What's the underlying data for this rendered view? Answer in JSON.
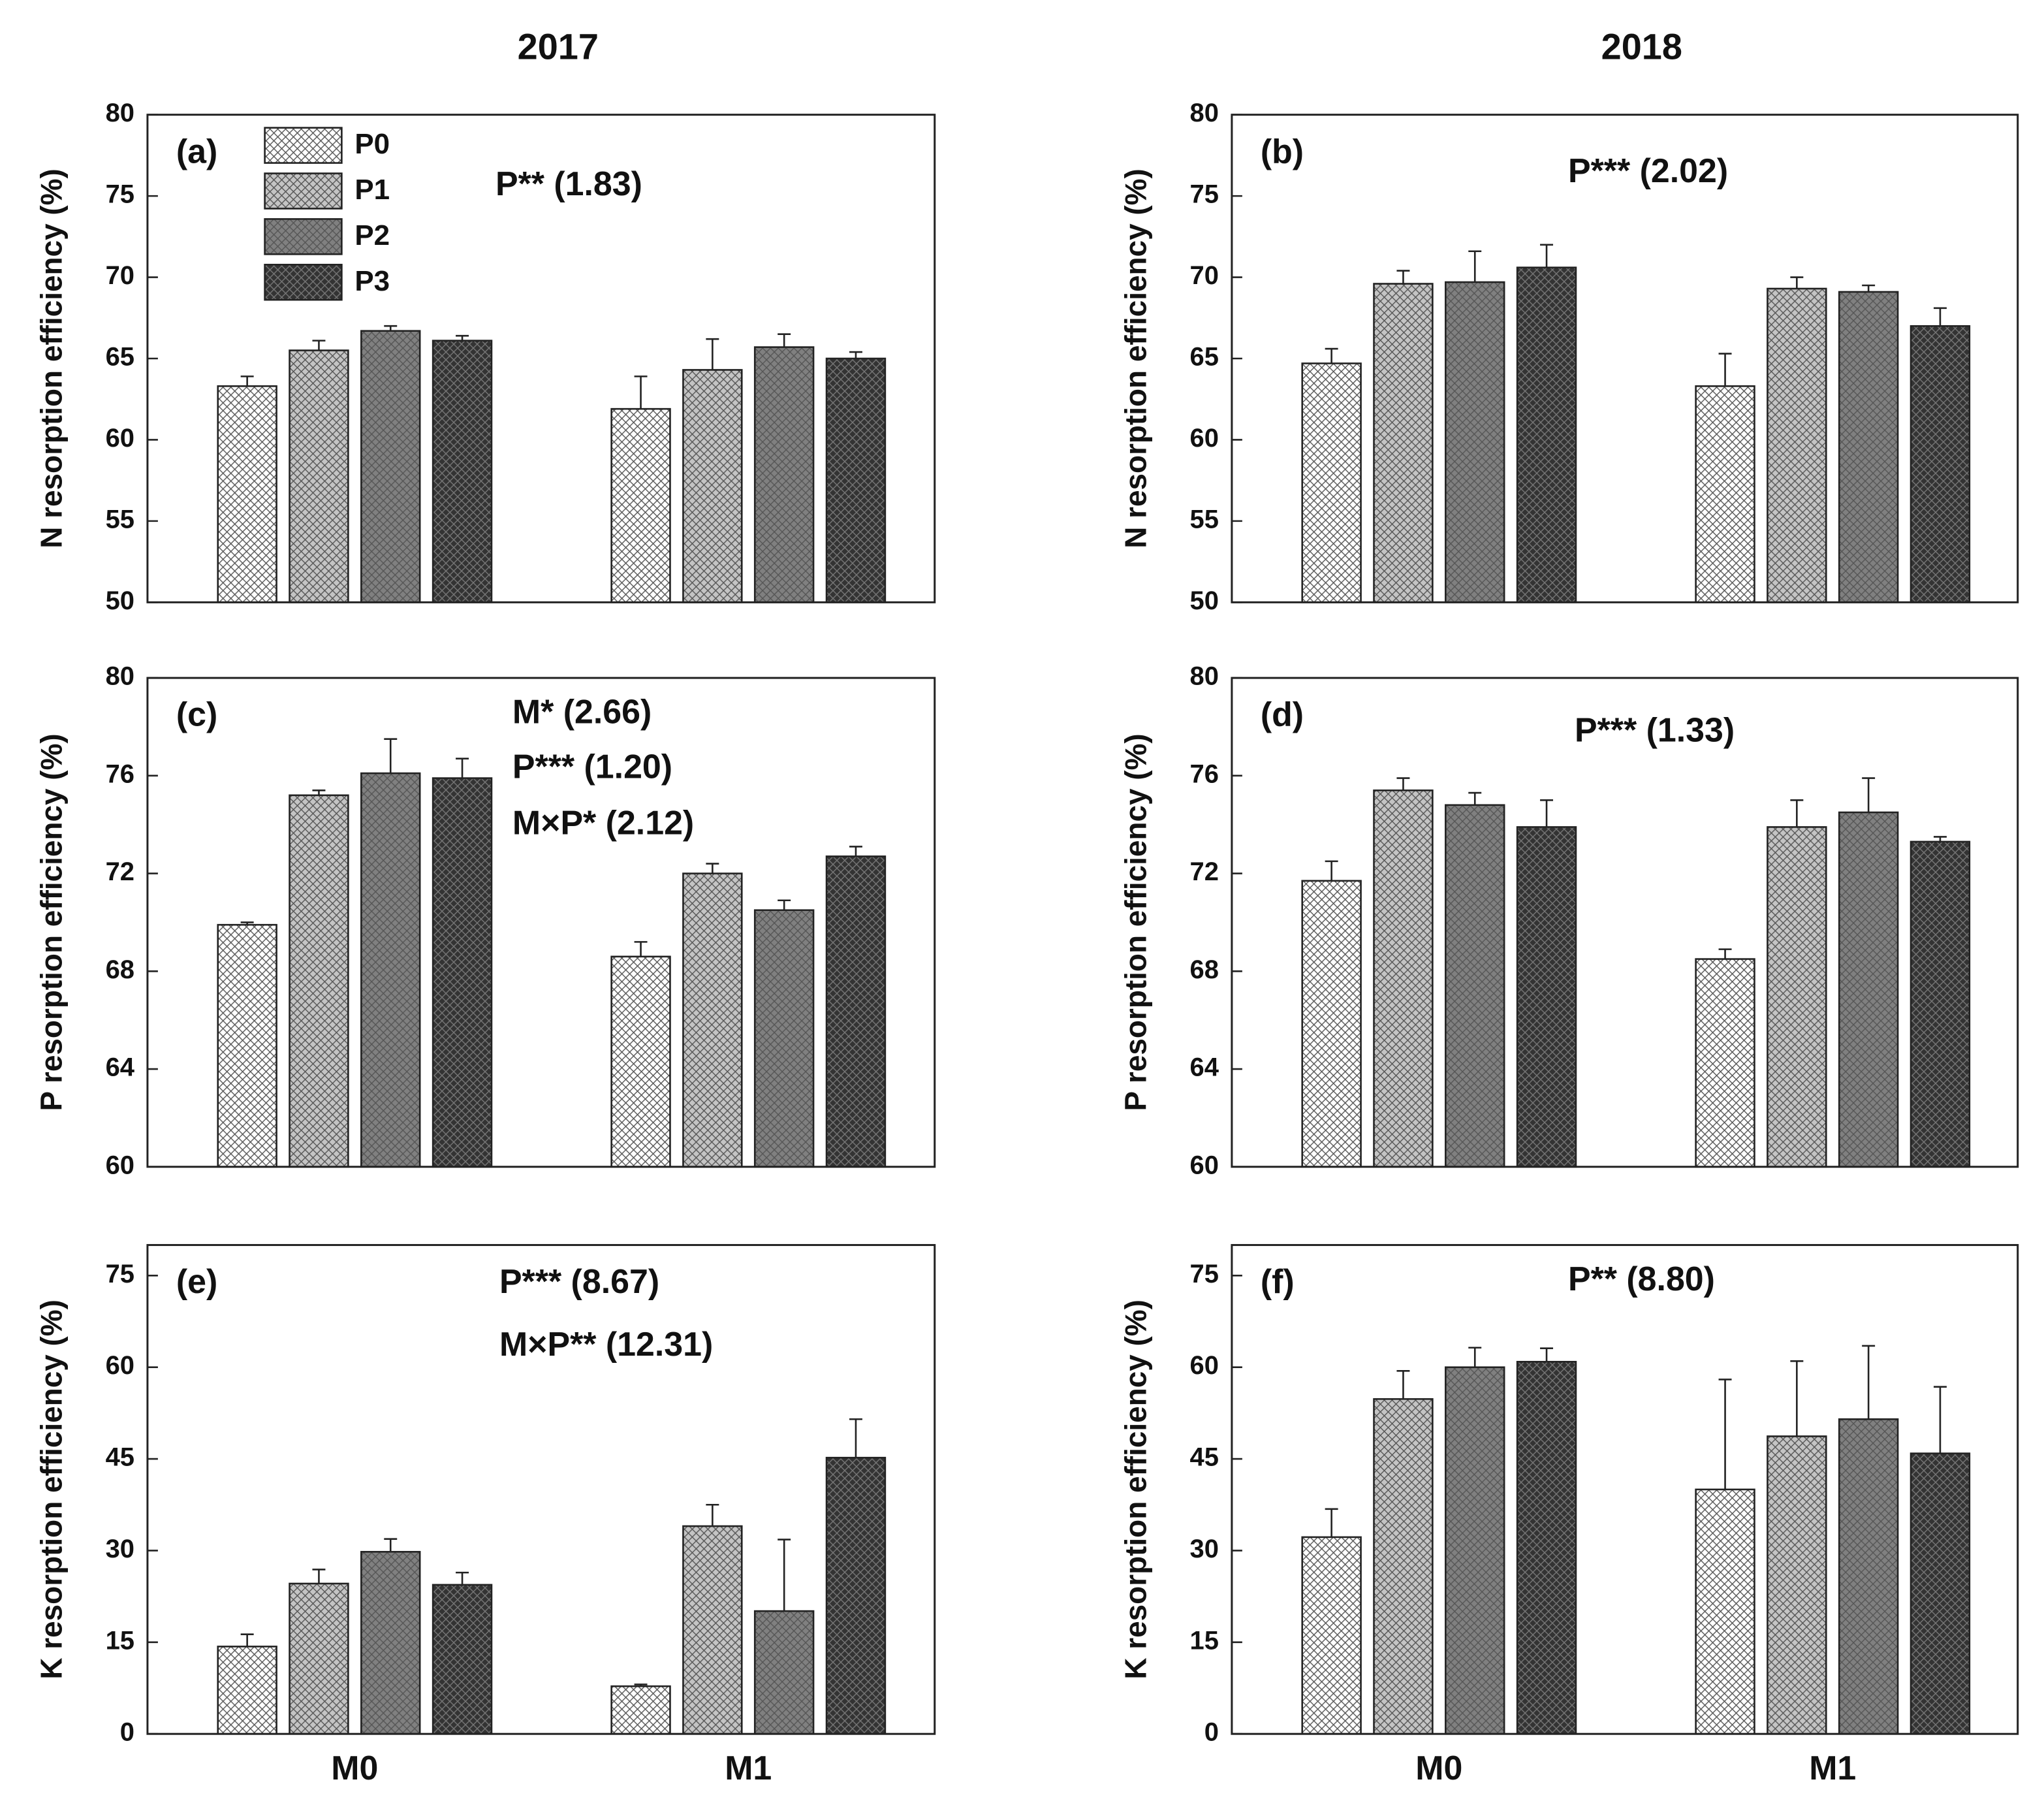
{
  "chart_data": [
    {
      "type": "bar",
      "title": "2017",
      "panel_label": "(a)",
      "ylabel": "N resorption efficiency (%)",
      "annotations": [
        "P** (1.83)"
      ],
      "categories": [
        null,
        null
      ],
      "legend": "top-left",
      "ylim": [
        50,
        80
      ],
      "yticks": [
        50,
        55,
        60,
        65,
        70,
        75,
        80
      ],
      "series": [
        {
          "name": "P0",
          "color": "#ffffff",
          "values": [
            63.3,
            61.9
          ],
          "errors": [
            0.6,
            2.0
          ]
        },
        {
          "name": "P1",
          "color": "#c4c4c4",
          "values": [
            65.5,
            64.3
          ],
          "errors": [
            0.6,
            1.9
          ]
        },
        {
          "name": "P2",
          "color": "#808080",
          "values": [
            66.7,
            65.7
          ],
          "errors": [
            0.3,
            0.8
          ]
        },
        {
          "name": "P3",
          "color": "#333333",
          "values": [
            66.1,
            65.0
          ],
          "errors": [
            0.3,
            0.4
          ]
        }
      ]
    },
    {
      "type": "bar",
      "title": "2018",
      "panel_label": "(b)",
      "ylabel": "N resorption efficiency (%)",
      "annotations": [
        "P*** (2.02)"
      ],
      "categories": [
        null,
        null
      ],
      "ylim": [
        50,
        80
      ],
      "yticks": [
        50,
        55,
        60,
        65,
        70,
        75,
        80
      ],
      "series": [
        {
          "color": "#ffffff",
          "values": [
            64.7,
            63.3
          ],
          "errors": [
            0.9,
            2.0
          ]
        },
        {
          "color": "#c4c4c4",
          "values": [
            69.6,
            69.3
          ],
          "errors": [
            0.8,
            0.7
          ]
        },
        {
          "color": "#808080",
          "values": [
            69.7,
            69.1
          ],
          "errors": [
            1.9,
            0.4
          ]
        },
        {
          "color": "#333333",
          "values": [
            70.6,
            67.0
          ],
          "errors": [
            1.4,
            1.1
          ]
        }
      ]
    },
    {
      "type": "bar",
      "panel_label": "(c)",
      "ylabel": "P resorption efficiency (%)",
      "annotations": [
        "M* (2.66)",
        "P*** (1.20)",
        "M×P* (2.12)"
      ],
      "categories": [
        null,
        null
      ],
      "ylim": [
        60,
        80
      ],
      "yticks": [
        60,
        64,
        68,
        72,
        76,
        80
      ],
      "series": [
        {
          "color": "#ffffff",
          "values": [
            69.9,
            68.6
          ],
          "errors": [
            0.1,
            0.6
          ]
        },
        {
          "color": "#c4c4c4",
          "values": [
            75.2,
            72.0
          ],
          "errors": [
            0.2,
            0.4
          ]
        },
        {
          "color": "#808080",
          "values": [
            76.1,
            70.5
          ],
          "errors": [
            1.4,
            0.4
          ]
        },
        {
          "color": "#333333",
          "values": [
            75.9,
            72.7
          ],
          "errors": [
            0.8,
            0.4
          ]
        }
      ]
    },
    {
      "type": "bar",
      "panel_label": "(d)",
      "ylabel": "P resorption efficiency (%)",
      "annotations": [
        "P*** (1.33)"
      ],
      "categories": [
        null,
        null
      ],
      "ylim": [
        60,
        80
      ],
      "yticks": [
        60,
        64,
        68,
        72,
        76,
        80
      ],
      "series": [
        {
          "color": "#ffffff",
          "values": [
            71.7,
            68.5
          ],
          "errors": [
            0.8,
            0.4
          ]
        },
        {
          "color": "#c4c4c4",
          "values": [
            75.4,
            73.9
          ],
          "errors": [
            0.5,
            1.1
          ]
        },
        {
          "color": "#808080",
          "values": [
            74.8,
            74.5
          ],
          "errors": [
            0.5,
            1.4
          ]
        },
        {
          "color": "#333333",
          "values": [
            73.9,
            73.3
          ],
          "errors": [
            1.1,
            0.2
          ]
        }
      ]
    },
    {
      "type": "bar",
      "panel_label": "(e)",
      "ylabel": "K resorption efficiency (%)",
      "annotations": [
        "P*** (8.67)",
        "M×P** (12.31)"
      ],
      "categories": [
        "M0",
        "M1"
      ],
      "ylim": [
        0,
        80
      ],
      "yticks": [
        0,
        15,
        30,
        45,
        60,
        75
      ],
      "series": [
        {
          "color": "#ffffff",
          "values": [
            14.3,
            7.8
          ],
          "errors": [
            2.0,
            0.3
          ]
        },
        {
          "color": "#c4c4c4",
          "values": [
            24.6,
            34.0
          ],
          "errors": [
            2.3,
            3.5
          ]
        },
        {
          "color": "#808080",
          "values": [
            29.8,
            20.1
          ],
          "errors": [
            2.1,
            11.7
          ]
        },
        {
          "color": "#333333",
          "values": [
            24.4,
            45.2
          ],
          "errors": [
            2.0,
            6.3
          ]
        }
      ]
    },
    {
      "type": "bar",
      "panel_label": "(f)",
      "ylabel": "K resorption efficiency (%)",
      "annotations": [
        "P** (8.80)"
      ],
      "categories": [
        "M0",
        "M1"
      ],
      "ylim": [
        0,
        80
      ],
      "yticks": [
        0,
        15,
        30,
        45,
        60,
        75
      ],
      "series": [
        {
          "color": "#ffffff",
          "values": [
            32.2,
            40.0
          ],
          "errors": [
            4.6,
            18.0
          ]
        },
        {
          "color": "#c4c4c4",
          "values": [
            54.8,
            48.7
          ],
          "errors": [
            4.6,
            12.3
          ]
        },
        {
          "color": "#808080",
          "values": [
            60.0,
            51.5
          ],
          "errors": [
            3.2,
            12.0
          ]
        },
        {
          "color": "#333333",
          "values": [
            60.9,
            45.9
          ],
          "errors": [
            2.2,
            10.9
          ]
        }
      ]
    }
  ]
}
